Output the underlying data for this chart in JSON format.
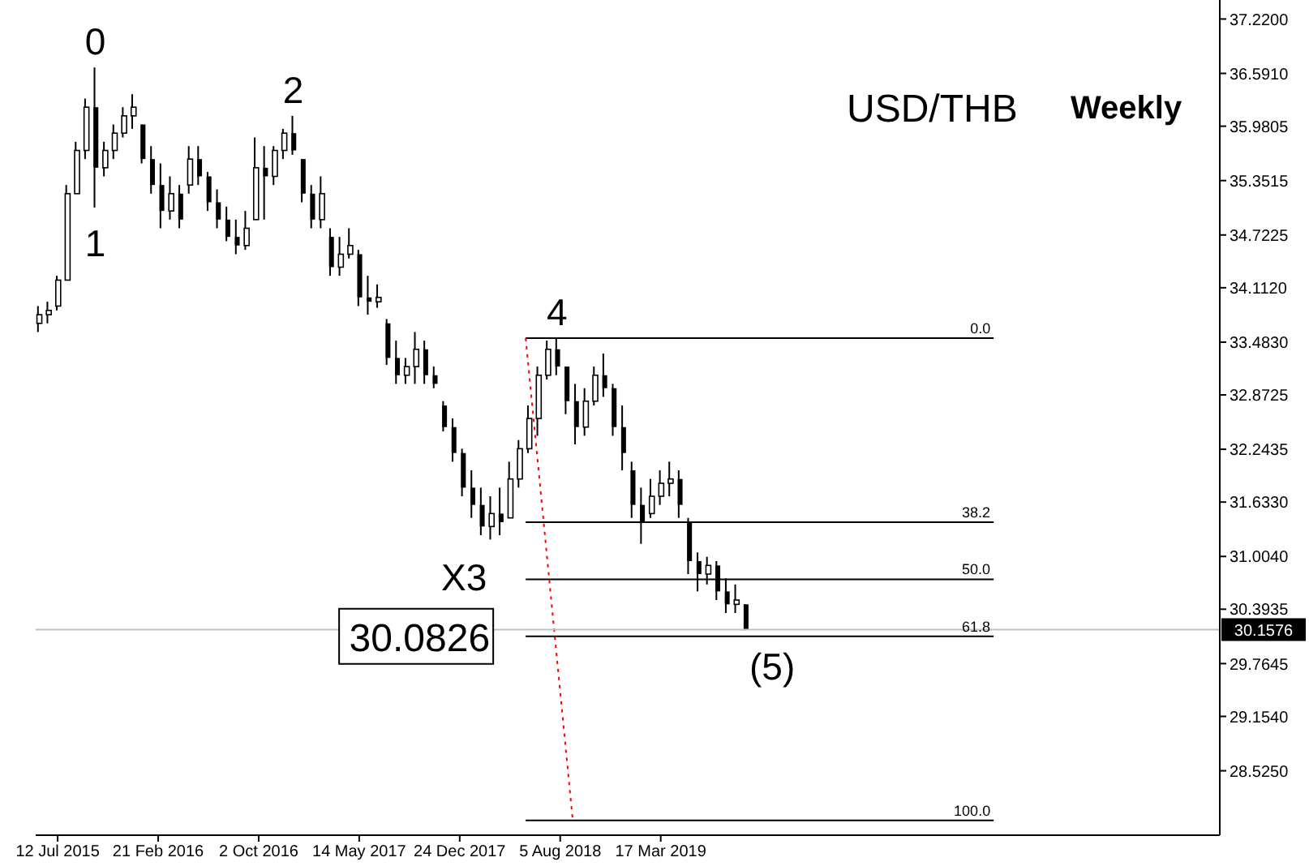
{
  "chart_data": {
    "type": "candlestick",
    "title": "USD/THB",
    "subtitle": "Weekly",
    "x": [
      "2015-05-31",
      "2015-06-21",
      "2015-07-12",
      "2015-08-02",
      "2015-08-23",
      "2015-09-13",
      "2015-10-04",
      "2015-10-25",
      "2015-11-15",
      "2015-12-06",
      "2015-12-27",
      "2016-01-17",
      "2016-02-07",
      "2016-02-28",
      "2016-03-20",
      "2016-04-10",
      "2016-05-01",
      "2016-05-22",
      "2016-06-12",
      "2016-07-03",
      "2016-07-24",
      "2016-08-14",
      "2016-09-04",
      "2016-09-25",
      "2016-10-16",
      "2016-11-06",
      "2016-11-27",
      "2016-12-18",
      "2017-01-08",
      "2017-01-29",
      "2017-02-19",
      "2017-03-12",
      "2017-04-02",
      "2017-04-23",
      "2017-05-14",
      "2017-06-04",
      "2017-06-25",
      "2017-07-16",
      "2017-08-06",
      "2017-08-27",
      "2017-09-17",
      "2017-10-08",
      "2017-10-29",
      "2017-11-19",
      "2017-12-10",
      "2017-12-31",
      "2018-01-21",
      "2018-02-11",
      "2018-03-04",
      "2018-03-25",
      "2018-04-15",
      "2018-05-06",
      "2018-05-27",
      "2018-06-17",
      "2018-07-08",
      "2018-07-29",
      "2018-08-19",
      "2018-09-09",
      "2018-09-30",
      "2018-10-21",
      "2018-11-11",
      "2018-12-02",
      "2018-12-23",
      "2019-01-13",
      "2019-02-03",
      "2019-02-24",
      "2019-03-17",
      "2019-04-07",
      "2019-04-28",
      "2019-05-19",
      "2019-06-09",
      "2019-06-30",
      "2019-07-21",
      "2019-08-11",
      "2019-09-01",
      "2019-09-22"
    ],
    "ohlc": [
      [
        33.7,
        33.9,
        33.6,
        33.8
      ],
      [
        33.8,
        33.95,
        33.7,
        33.85
      ],
      [
        33.9,
        34.25,
        33.85,
        34.2
      ],
      [
        34.2,
        35.3,
        34.2,
        35.2
      ],
      [
        35.2,
        35.8,
        35.2,
        35.7
      ],
      [
        35.7,
        36.3,
        35.6,
        36.2
      ],
      [
        36.2,
        36.66,
        35.04,
        35.5
      ],
      [
        35.5,
        35.8,
        35.4,
        35.7
      ],
      [
        35.7,
        36.0,
        35.6,
        35.9
      ],
      [
        35.9,
        36.2,
        35.85,
        36.1
      ],
      [
        36.1,
        36.35,
        35.95,
        36.2
      ],
      [
        36.0,
        36.0,
        35.55,
        35.6
      ],
      [
        35.6,
        35.75,
        35.2,
        35.3
      ],
      [
        35.3,
        35.55,
        34.8,
        35.0
      ],
      [
        35.0,
        35.4,
        34.9,
        35.2
      ],
      [
        35.2,
        35.3,
        34.8,
        34.9
      ],
      [
        35.3,
        35.75,
        35.2,
        35.6
      ],
      [
        35.6,
        35.75,
        35.3,
        35.4
      ],
      [
        35.4,
        35.45,
        35.0,
        35.1
      ],
      [
        35.1,
        35.25,
        34.8,
        34.9
      ],
      [
        34.9,
        35.05,
        34.65,
        34.7
      ],
      [
        34.7,
        34.9,
        34.5,
        34.6
      ],
      [
        34.6,
        35.0,
        34.55,
        34.8
      ],
      [
        34.9,
        35.85,
        34.9,
        35.5
      ],
      [
        35.5,
        35.75,
        34.9,
        35.4
      ],
      [
        35.4,
        35.75,
        35.3,
        35.7
      ],
      [
        35.7,
        35.95,
        35.6,
        35.9
      ],
      [
        35.9,
        36.1,
        35.65,
        35.7
      ],
      [
        35.6,
        35.6,
        35.1,
        35.2
      ],
      [
        35.2,
        35.3,
        34.8,
        34.9
      ],
      [
        34.9,
        35.4,
        34.8,
        35.2
      ],
      [
        34.7,
        34.8,
        34.25,
        34.35
      ],
      [
        34.35,
        34.7,
        34.25,
        34.5
      ],
      [
        34.5,
        34.8,
        34.45,
        34.6
      ],
      [
        34.5,
        34.55,
        33.9,
        34.0
      ],
      [
        34.0,
        34.25,
        33.8,
        33.95
      ],
      [
        33.95,
        34.15,
        33.88,
        34.0
      ],
      [
        33.7,
        33.75,
        33.22,
        33.3
      ],
      [
        33.3,
        33.5,
        33.0,
        33.1
      ],
      [
        33.1,
        33.3,
        33.0,
        33.2
      ],
      [
        33.2,
        33.6,
        33.0,
        33.4
      ],
      [
        33.4,
        33.5,
        33.0,
        33.1
      ],
      [
        33.1,
        33.2,
        32.95,
        33.0
      ],
      [
        32.75,
        32.8,
        32.45,
        32.5
      ],
      [
        32.5,
        32.6,
        32.1,
        32.2
      ],
      [
        32.2,
        32.25,
        31.7,
        31.8
      ],
      [
        31.8,
        32.0,
        31.45,
        31.6
      ],
      [
        31.6,
        31.8,
        31.25,
        31.35
      ],
      [
        31.35,
        31.7,
        31.2,
        31.5
      ],
      [
        31.5,
        31.8,
        31.25,
        31.4
      ],
      [
        31.45,
        32.1,
        31.45,
        31.9
      ],
      [
        31.9,
        32.35,
        31.8,
        32.25
      ],
      [
        32.25,
        32.75,
        32.2,
        32.6
      ],
      [
        32.6,
        33.2,
        32.4,
        33.1
      ],
      [
        33.1,
        33.5,
        33.05,
        33.4
      ],
      [
        33.4,
        33.53,
        33.1,
        33.2
      ],
      [
        33.2,
        33.2,
        32.65,
        32.8
      ],
      [
        32.8,
        33.0,
        32.3,
        32.5
      ],
      [
        32.5,
        32.95,
        32.4,
        32.8
      ],
      [
        32.8,
        33.2,
        32.75,
        33.1
      ],
      [
        33.1,
        33.35,
        32.85,
        32.95
      ],
      [
        32.95,
        33.0,
        32.4,
        32.5
      ],
      [
        32.5,
        32.75,
        32.0,
        32.2
      ],
      [
        32.0,
        32.1,
        31.45,
        31.6
      ],
      [
        31.6,
        31.8,
        31.15,
        31.4
      ],
      [
        31.5,
        31.9,
        31.45,
        31.7
      ],
      [
        31.7,
        32.0,
        31.6,
        31.85
      ],
      [
        31.85,
        32.1,
        31.7,
        31.9
      ],
      [
        31.9,
        32.0,
        31.45,
        31.6
      ],
      [
        31.4,
        31.45,
        30.8,
        30.95
      ],
      [
        30.95,
        31.05,
        30.6,
        30.8
      ],
      [
        30.8,
        31.0,
        30.68,
        30.9
      ],
      [
        30.9,
        30.95,
        30.5,
        30.6
      ],
      [
        30.6,
        30.75,
        30.35,
        30.45
      ],
      [
        30.45,
        30.68,
        30.35,
        30.5
      ],
      [
        30.45,
        30.45,
        30.15,
        30.16
      ]
    ],
    "color": "#000000",
    "series": [
      {
        "type": "line",
        "name": "0.0",
        "color": "#000000",
        "x": [
          "2018-05-20",
          "2021-03-28"
        ],
        "values": [
          33.53,
          33.53
        ]
      },
      {
        "type": "line",
        "name": "38.2",
        "color": "#000000",
        "x": [
          "2018-05-20",
          "2021-03-28"
        ],
        "values": [
          31.4,
          31.4
        ]
      },
      {
        "type": "line",
        "name": "50.0",
        "color": "#000000",
        "x": [
          "2018-05-20",
          "2021-03-28"
        ],
        "values": [
          30.74,
          30.74
        ]
      },
      {
        "type": "line",
        "name": "61.8",
        "color": "#000000",
        "x": [
          "2018-05-20",
          "2021-03-28"
        ],
        "values": [
          30.08,
          30.08
        ]
      },
      {
        "type": "line",
        "name": "100.0",
        "color": "#000000",
        "x": [
          "2018-05-20",
          "2021-03-28"
        ],
        "values": [
          27.95,
          27.95
        ]
      },
      {
        "type": "line",
        "color": "#ff0000",
        "line_style": "dotted",
        "x": [
          "2018-05-20",
          "2018-09-02"
        ],
        "values": [
          33.53,
          27.95
        ]
      }
    ],
    "ref_lines": [
      {
        "axis": "y",
        "value": 30.1576,
        "label": "30.1576",
        "color": "#c0c0c0"
      }
    ],
    "annotations": [
      {
        "text": "0",
        "x": "2015-10-04",
        "y": 36.66
      },
      {
        "text": "1",
        "x": "2015-10-04",
        "y": 35.04
      },
      {
        "text": "2",
        "x": "2016-12-18",
        "y": 36.1
      },
      {
        "text": "4",
        "x": "2018-07-29",
        "y": 33.53
      },
      "X3",
      "(5)",
      {
        "text": "30.0826",
        "x": "2018-05-20",
        "y": 30.08
      }
    ],
    "xlim": [
      "2015-05-24",
      "2022-08-14"
    ],
    "xticks": [
      {
        "value": "2015-07-12",
        "label": "12 Jul 2015"
      },
      {
        "value": "2016-02-21",
        "label": "21 Feb 2016"
      },
      {
        "value": "2016-10-02",
        "label": "2 Oct 2016"
      },
      {
        "value": "2017-05-14",
        "label": "14 May 2017"
      },
      {
        "value": "2017-12-24",
        "label": "24 Dec 2017"
      },
      {
        "value": "2018-08-05",
        "label": "5 Aug 2018"
      },
      {
        "value": "2019-03-17",
        "label": "17 Mar 2019"
      }
    ],
    "ylim": [
      27.78,
      37.44
    ],
    "yticks": [
      {
        "value": 37.22,
        "label": "37.2200"
      },
      {
        "value": 36.591,
        "label": "36.5910"
      },
      {
        "value": 35.9805,
        "label": "35.9805"
      },
      {
        "value": 35.3515,
        "label": "35.3515"
      },
      {
        "value": 34.7225,
        "label": "34.7225"
      },
      {
        "value": 34.112,
        "label": "34.1120"
      },
      {
        "value": 33.483,
        "label": "33.4830"
      },
      {
        "value": 32.8725,
        "label": "32.8725"
      },
      {
        "value": 32.2435,
        "label": "32.2435"
      },
      {
        "value": 31.633,
        "label": "31.6330"
      },
      {
        "value": 31.004,
        "label": "31.0040"
      },
      {
        "value": 30.3935,
        "label": "30.3935"
      },
      {
        "value": 29.7645,
        "label": "29.7645"
      },
      {
        "value": 29.154,
        "label": "29.1540"
      },
      {
        "value": 28.525,
        "label": "28.5250"
      }
    ]
  }
}
